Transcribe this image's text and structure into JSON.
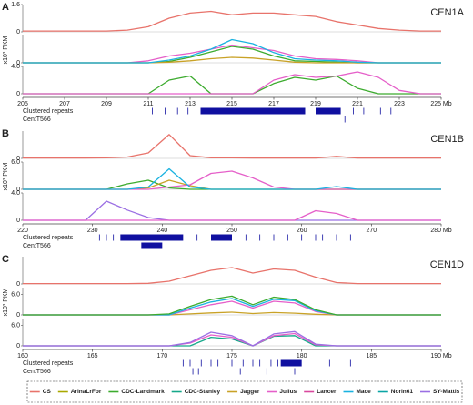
{
  "chart_data": [
    {
      "type": "line",
      "panel_label": "A",
      "title": "CEN1A",
      "ylabel": "x10³ PKM",
      "x": [
        205,
        206,
        207,
        208,
        209,
        210,
        211,
        212,
        213,
        214,
        215,
        216,
        217,
        218,
        219,
        220,
        221,
        222,
        223,
        224,
        225
      ],
      "xlim": [
        205,
        225
      ],
      "xticks": [
        205,
        207,
        209,
        211,
        213,
        215,
        217,
        219,
        221,
        223,
        {
          "value": 225,
          "label": "225 Mb"
        }
      ],
      "subplots": [
        {
          "ylim": [
            0,
            1.6
          ],
          "yticks": [
            0,
            1.6
          ],
          "series": [
            {
              "name": "CS",
              "color": "#e8736b",
              "values": [
                0.05,
                0.05,
                0.05,
                0.05,
                0.05,
                0.1,
                0.3,
                0.8,
                1.1,
                1.2,
                1.0,
                1.1,
                1.1,
                1.0,
                0.9,
                0.6,
                0.4,
                0.2,
                0.1,
                0.05,
                0.05
              ]
            }
          ]
        },
        {
          "ylim": [
            0,
            4
          ],
          "yticks": [
            0
          ],
          "series": [
            {
              "name": "Julius",
              "color": "#e55fc9",
              "values": [
                0,
                0,
                0,
                0,
                0,
                0,
                0.3,
                1.0,
                1.4,
                2.0,
                2.6,
                2.2,
                1.8,
                1.0,
                0.6,
                0.5,
                0.3,
                0,
                0,
                0,
                0
              ]
            },
            {
              "name": "CDC-Landmark",
              "color": "#3cab2e",
              "values": [
                0,
                0,
                0,
                0,
                0,
                0,
                0,
                0.2,
                0.8,
                1.6,
                2.4,
                2.0,
                1.0,
                0.3,
                0.2,
                0.1,
                0,
                0,
                0,
                0,
                0
              ]
            },
            {
              "name": "Jagger",
              "color": "#c9a227",
              "values": [
                0,
                0,
                0,
                0,
                0,
                0,
                0,
                0.1,
                0.3,
                0.6,
                0.8,
                0.7,
                0.4,
                0.1,
                0,
                0,
                0,
                0,
                0,
                0,
                0
              ]
            },
            {
              "name": "Mace",
              "color": "#1ab2e0",
              "values": [
                0,
                0,
                0,
                0,
                0,
                0,
                0,
                0.4,
                1.0,
                2.0,
                3.4,
                2.8,
                1.5,
                0.6,
                0.4,
                0.3,
                0.1,
                0,
                0,
                0,
                0
              ]
            }
          ]
        },
        {
          "ylim": [
            0,
            4
          ],
          "yticks": [
            0,
            {
              "value": 4,
              "label": "4.0"
            }
          ],
          "series": [
            {
              "name": "CDC-Landmark",
              "color": "#3cab2e",
              "values": [
                0,
                0,
                0,
                0,
                0,
                0,
                0,
                2.0,
                2.6,
                0,
                0,
                0,
                1.5,
                2.4,
                2.0,
                2.6,
                0.8,
                0,
                0,
                0,
                0
              ]
            },
            {
              "name": "Julius",
              "color": "#e55fc9",
              "values": [
                0,
                0,
                0,
                0,
                0,
                0,
                0,
                0,
                0,
                0,
                0,
                0,
                2.0,
                2.8,
                2.4,
                2.6,
                3.2,
                2.4,
                0.5,
                0,
                0
              ]
            }
          ]
        }
      ],
      "tracks": [
        {
          "label": "Clustered repeats",
          "marks": [
            211.2,
            211.8,
            212.4,
            212.9,
            220.5,
            220.8,
            221.3,
            222.1,
            222.6
          ],
          "spans": [
            [
              213.5,
              218.5
            ],
            [
              219,
              220.2
            ]
          ]
        },
        {
          "label": "CentT566",
          "marks": [
            220.4
          ],
          "spans": []
        }
      ]
    },
    {
      "type": "line",
      "panel_label": "B",
      "title": "CEN1B",
      "ylabel": "x10³ PKM",
      "x": [
        220,
        223,
        226,
        229,
        232,
        235,
        238,
        241,
        244,
        247,
        250,
        253,
        256,
        259,
        262,
        265,
        268,
        271,
        274,
        277,
        280
      ],
      "xlim": [
        220,
        280
      ],
      "xticks": [
        220,
        230,
        240,
        250,
        260,
        270,
        {
          "value": 280,
          "label": "280 Mb"
        }
      ],
      "subplots": [
        {
          "ylim": [
            0,
            4
          ],
          "yticks": [
            0
          ],
          "series": [
            {
              "name": "CS",
              "color": "#e8736b",
              "values": [
                0.05,
                0.05,
                0.05,
                0.05,
                0.1,
                0.2,
                0.8,
                3.5,
                0.4,
                0.1,
                0.1,
                0.05,
                0.05,
                0.05,
                0.05,
                0.3,
                0.05,
                0.05,
                0.05,
                0.05,
                0.05
              ]
            }
          ]
        },
        {
          "ylim": [
            0,
            6
          ],
          "yticks": [
            0,
            {
              "value": 6,
              "label": "6.0"
            }
          ],
          "series": [
            {
              "name": "CDC-Landmark",
              "color": "#3cab2e",
              "values": [
                0,
                0,
                0,
                0,
                0,
                1.2,
                2.0,
                0.3,
                0,
                0,
                0,
                0,
                0,
                0,
                0,
                0,
                0,
                0,
                0,
                0,
                0
              ]
            },
            {
              "name": "Jagger",
              "color": "#c9a227",
              "values": [
                0,
                0,
                0,
                0,
                0,
                0,
                0.3,
                2.0,
                0.8,
                0,
                0,
                0,
                0,
                0,
                0,
                0,
                0,
                0,
                0,
                0,
                0
              ]
            },
            {
              "name": "Julius",
              "color": "#e55fc9",
              "values": [
                0,
                0,
                0,
                0,
                0,
                0,
                0,
                0.5,
                1.0,
                3.5,
                4.0,
                2.5,
                0.5,
                0,
                0,
                0,
                0,
                0,
                0,
                0,
                0
              ]
            },
            {
              "name": "Mace",
              "color": "#1ab2e0",
              "values": [
                0,
                0,
                0,
                0,
                0,
                0,
                0.5,
                4.5,
                0.5,
                0,
                0,
                0,
                0,
                0,
                0,
                0.6,
                0,
                0,
                0,
                0,
                0
              ]
            }
          ]
        },
        {
          "ylim": [
            0,
            4
          ],
          "yticks": [
            0,
            {
              "value": 4,
              "label": "4.0"
            }
          ],
          "series": [
            {
              "name": "SY-Mattis",
              "color": "#9b6fe3",
              "values": [
                0,
                0,
                0,
                0,
                2.8,
                1.5,
                0.4,
                0,
                0,
                0,
                0,
                0,
                0,
                0,
                0,
                0,
                0,
                0,
                0,
                0,
                0
              ]
            },
            {
              "name": "Julius",
              "color": "#e55fc9",
              "values": [
                0,
                0,
                0,
                0,
                0,
                0,
                0,
                0,
                0,
                0,
                0,
                0,
                0,
                0,
                1.4,
                1.0,
                0,
                0,
                0,
                0,
                0
              ]
            }
          ]
        }
      ],
      "tracks": [
        {
          "label": "Clustered repeats",
          "marks": [
            231,
            232,
            233,
            245,
            252,
            254,
            256,
            258,
            260,
            262,
            263,
            265,
            267
          ],
          "spans": [
            [
              234,
              243
            ],
            [
              247,
              250
            ]
          ]
        },
        {
          "label": "CentT566",
          "marks": [],
          "spans": [
            [
              237,
              240
            ]
          ]
        }
      ]
    },
    {
      "type": "line",
      "panel_label": "C",
      "title": "CEN1D",
      "ylabel": "x10³ PKM",
      "x": [
        160,
        161.5,
        163,
        164.5,
        166,
        167.5,
        169,
        170.5,
        172,
        173.5,
        175,
        176.5,
        178,
        179.5,
        181,
        182.5,
        184,
        185.5,
        187,
        188.5,
        190
      ],
      "xlim": [
        160,
        190
      ],
      "xticks": [
        160,
        165,
        170,
        175,
        180,
        185,
        {
          "value": 190,
          "label": "190 Mb"
        }
      ],
      "subplots": [
        {
          "ylim": [
            0,
            4
          ],
          "yticks": [
            0
          ],
          "series": [
            {
              "name": "CS",
              "color": "#e8736b",
              "values": [
                0.05,
                0.05,
                0.05,
                0.05,
                0.05,
                0.05,
                0.1,
                0.4,
                1.2,
                2.0,
                2.4,
                1.6,
                2.2,
                2.0,
                1.0,
                0.2,
                0.05,
                0.05,
                0.05,
                0.05,
                0.05
              ]
            }
          ]
        },
        {
          "ylim": [
            0,
            8
          ],
          "yticks": [
            0,
            {
              "value": 6,
              "label": "6.0"
            }
          ],
          "series": [
            {
              "name": "Jagger",
              "color": "#c9a227",
              "values": [
                0,
                0,
                0,
                0,
                0,
                0,
                0,
                0,
                0.3,
                0.6,
                0.8,
                0.4,
                0.7,
                0.5,
                0.2,
                0,
                0,
                0,
                0,
                0,
                0
              ]
            },
            {
              "name": "Julius",
              "color": "#e55fc9",
              "values": [
                0,
                0,
                0,
                0,
                0,
                0,
                0,
                0,
                1.5,
                3.0,
                4.0,
                2.0,
                4.0,
                3.5,
                1.0,
                0,
                0,
                0,
                0,
                0,
                0
              ]
            },
            {
              "name": "Mace",
              "color": "#1ab2e0",
              "values": [
                0,
                0,
                0,
                0,
                0,
                0,
                0,
                0,
                2.0,
                3.8,
                4.8,
                2.5,
                4.6,
                4.2,
                1.2,
                0,
                0,
                0,
                0,
                0,
                0
              ]
            },
            {
              "name": "CDC-Landmark",
              "color": "#3cab2e",
              "values": [
                0,
                0,
                0,
                0,
                0,
                0,
                0,
                0.3,
                2.5,
                4.5,
                5.5,
                3.0,
                5.2,
                4.5,
                1.5,
                0,
                0,
                0,
                0,
                0,
                0
              ]
            }
          ]
        },
        {
          "ylim": [
            0,
            8
          ],
          "yticks": [
            0,
            {
              "value": 6,
              "label": "6.0"
            }
          ],
          "series": [
            {
              "name": "CDC-Stanley",
              "color": "#16a88a",
              "values": [
                0,
                0,
                0,
                0,
                0,
                0,
                0,
                0,
                0,
                2.5,
                2.0,
                0,
                2.8,
                3.0,
                0,
                0,
                0,
                0,
                0,
                0,
                0
              ]
            },
            {
              "name": "Julius",
              "color": "#e55fc9",
              "values": [
                0,
                0,
                0,
                0,
                0,
                0,
                0,
                0,
                0.8,
                3.2,
                2.5,
                0,
                3.0,
                3.6,
                0.3,
                0,
                0,
                0,
                0,
                0,
                0
              ]
            },
            {
              "name": "SY-Mattis",
              "color": "#9b6fe3",
              "values": [
                0,
                0,
                0,
                0,
                0,
                0,
                0,
                0,
                1.0,
                4.0,
                3.0,
                0,
                3.5,
                4.2,
                0.5,
                0,
                0,
                0,
                0,
                0,
                0
              ]
            }
          ]
        }
      ],
      "tracks": [
        {
          "label": "Clustered repeats",
          "marks": [
            171.5,
            172,
            172.8,
            173.5,
            174,
            175,
            175.8,
            176.5,
            177,
            177.8,
            178.3,
            182,
            183.5
          ],
          "spans": [
            [
              178.5,
              180
            ]
          ]
        },
        {
          "label": "CentT566",
          "marks": [
            172.2,
            172.6,
            175.6,
            176.8,
            177.5,
            179.5
          ],
          "spans": []
        }
      ]
    }
  ],
  "legend": {
    "entries": [
      {
        "name": "CS",
        "color": "#e8736b"
      },
      {
        "name": "ArinaLrFor",
        "color": "#a9a800"
      },
      {
        "name": "CDC-Landmark",
        "color": "#3cab2e"
      },
      {
        "name": "CDC-Stanley",
        "color": "#16a88a"
      },
      {
        "name": "Jagger",
        "color": "#c9a227"
      },
      {
        "name": "Julius",
        "color": "#e55fc9"
      },
      {
        "name": "Lancer",
        "color": "#d9489e"
      },
      {
        "name": "Mace",
        "color": "#1ab2e0"
      },
      {
        "name": "Norin61",
        "color": "#0aa5a5"
      },
      {
        "name": "SY-Mattis",
        "color": "#9b6fe3"
      }
    ]
  }
}
